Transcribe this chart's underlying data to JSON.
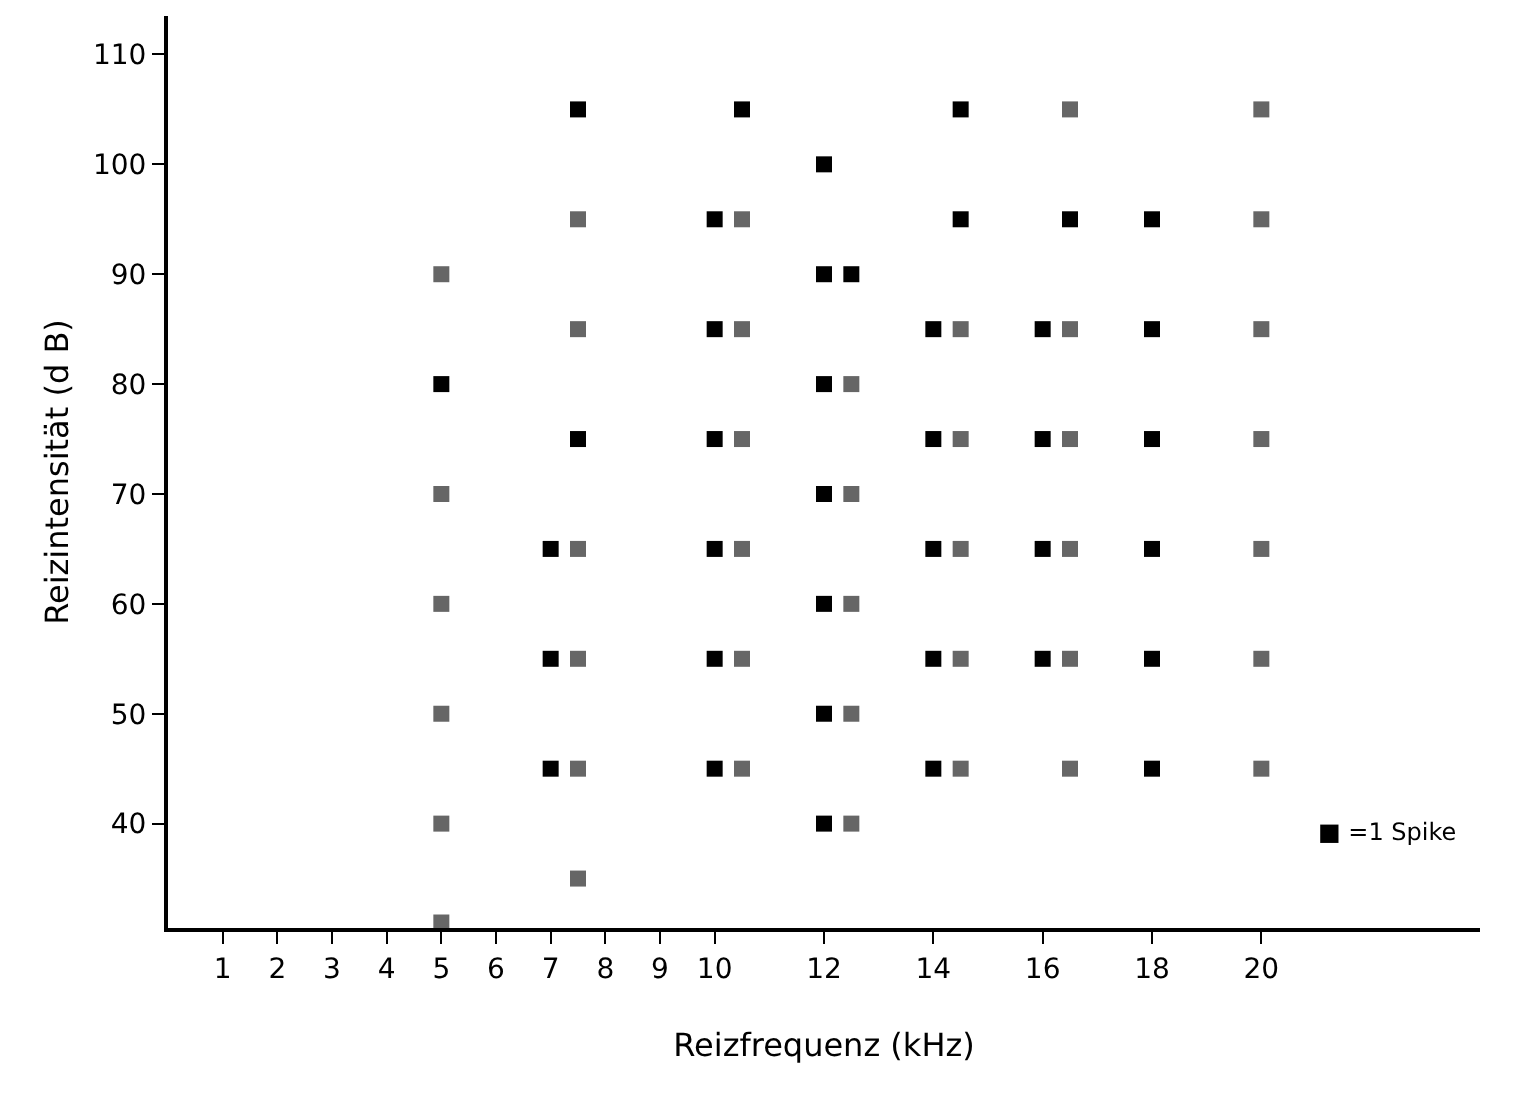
{
  "chart_data": {
    "type": "scatter",
    "xlabel": "Reizfrequenz (kHz)",
    "ylabel": "Reizintensität (d B)",
    "xlim": [
      0,
      24
    ],
    "xticks": [
      1,
      2,
      3,
      4,
      5,
      6,
      7,
      8,
      9,
      10,
      12,
      14,
      16,
      18,
      20
    ],
    "ylim": [
      30.5,
      113.5
    ],
    "yticks": [
      40,
      50,
      60,
      70,
      80,
      90,
      100,
      110
    ],
    "marker": "square",
    "series": [
      {
        "color": "#000000",
        "x": [
          5,
          7,
          7,
          7,
          7.5,
          7.5,
          10,
          10,
          10,
          10,
          10,
          10,
          10.5,
          12,
          12,
          12,
          12,
          12,
          12,
          12,
          12.5,
          14,
          14,
          14,
          14,
          14,
          14.5,
          14.5,
          16,
          16,
          16,
          16,
          16.5,
          18,
          18,
          18,
          18,
          18,
          18
        ],
        "values": [
          80,
          65,
          55,
          45,
          105,
          75,
          95,
          85,
          75,
          65,
          55,
          45,
          105,
          100,
          90,
          80,
          70,
          60,
          50,
          40,
          90,
          85,
          75,
          65,
          55,
          45,
          105,
          95,
          85,
          75,
          65,
          55,
          95,
          95,
          85,
          75,
          65,
          55,
          45
        ]
      },
      {
        "color": "#666666",
        "x": [
          5,
          5,
          5,
          5,
          5,
          5,
          7.5,
          7.5,
          7.5,
          7.5,
          7.5,
          7.5,
          10.5,
          10.5,
          10.5,
          10.5,
          10.5,
          10.5,
          12.5,
          12.5,
          12.5,
          12.5,
          12.5,
          14.5,
          14.5,
          14.5,
          14.5,
          14.5,
          16.5,
          16.5,
          16.5,
          16.5,
          16.5,
          16.5,
          20,
          20,
          20,
          20,
          20,
          20,
          20
        ],
        "values": [
          90,
          70,
          60,
          50,
          40,
          31,
          95,
          85,
          65,
          55,
          45,
          35,
          95,
          85,
          75,
          65,
          55,
          45,
          80,
          70,
          60,
          50,
          40,
          85,
          75,
          65,
          55,
          45,
          105,
          85,
          75,
          65,
          55,
          45,
          105,
          95,
          85,
          75,
          65,
          55,
          45
        ]
      }
    ],
    "annotations": [
      "■ =1 Spike"
    ]
  }
}
